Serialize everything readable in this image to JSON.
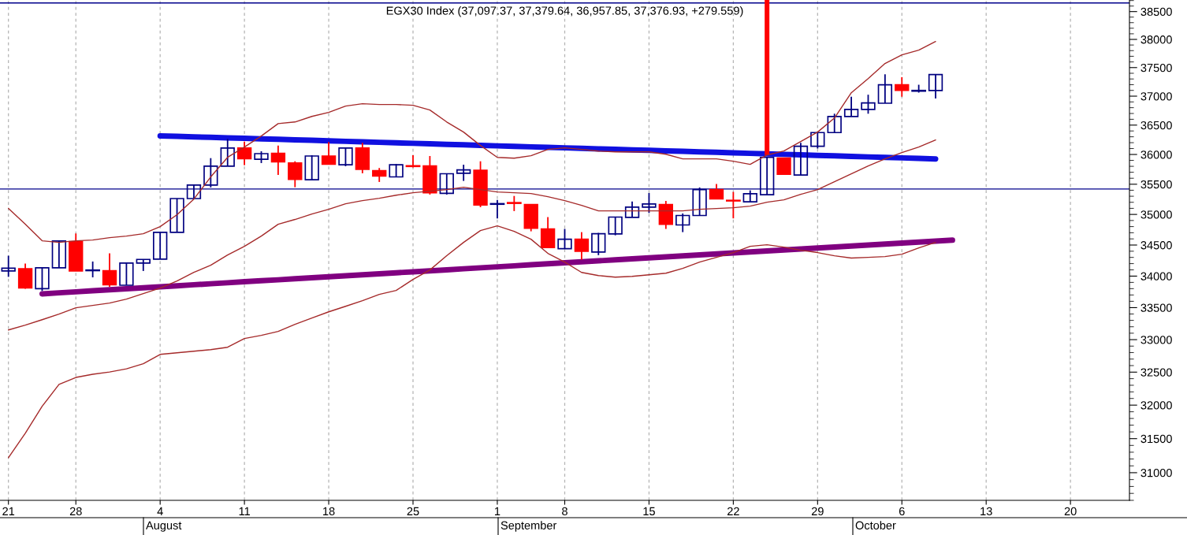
{
  "chart_data": {
    "type": "candlestick",
    "title": "EGX30 Index (37,097.37, 37,379.64, 36,957.85, 37,376.93, +279.559)",
    "categories": [
      "21",
      null,
      null,
      null,
      "28",
      null,
      null,
      null,
      null,
      "4",
      null,
      null,
      null,
      null,
      "11",
      null,
      null,
      null,
      null,
      "18",
      null,
      null,
      null,
      null,
      "25",
      null,
      null,
      null,
      null,
      "1",
      null,
      null,
      null,
      "8",
      null,
      null,
      null,
      null,
      "15",
      null,
      null,
      null,
      null,
      "22",
      null,
      null,
      null,
      null,
      "29",
      null,
      null,
      null,
      null,
      "6",
      null,
      null,
      null,
      null,
      "13",
      null,
      null,
      null,
      null,
      "20",
      null,
      null,
      null
    ],
    "series": [
      {
        "ohlc": [
          [
            34082,
            34327,
            33988,
            34127
          ],
          [
            34118,
            34200,
            33797,
            33813
          ],
          [
            33800,
            34140,
            33763,
            34132
          ],
          [
            34132,
            34565,
            34132,
            34565
          ],
          [
            34556,
            34688,
            34082,
            34082
          ],
          [
            34090,
            34234,
            33980,
            34095
          ],
          [
            34085,
            34365,
            33831,
            33863
          ],
          [
            33855,
            34209,
            33855,
            34209
          ],
          [
            34209,
            34268,
            34082,
            34268
          ],
          [
            34273,
            34706,
            34273,
            34706
          ],
          [
            34706,
            35262,
            34706,
            35262
          ],
          [
            35262,
            35486,
            35262,
            35486
          ],
          [
            35486,
            35938,
            35446,
            35802
          ],
          [
            35802,
            36264,
            35802,
            36108
          ],
          [
            36108,
            36219,
            35819,
            35928
          ],
          [
            35920,
            36054,
            35855,
            36014
          ],
          [
            36018,
            36152,
            35654,
            35875
          ],
          [
            35855,
            35885,
            35450,
            35582
          ],
          [
            35575,
            35987,
            35575,
            35974
          ],
          [
            35974,
            36210,
            35836,
            35836
          ],
          [
            35827,
            36108,
            35801,
            36108
          ],
          [
            36108,
            36197,
            35683,
            35749
          ],
          [
            35728,
            35772,
            35538,
            35636
          ],
          [
            35623,
            35840,
            35623,
            35827
          ],
          [
            35807,
            35987,
            35780,
            35800
          ],
          [
            35805,
            35974,
            35328,
            35358
          ],
          [
            35349,
            35675,
            35328,
            35675
          ],
          [
            35683,
            35827,
            35555,
            35740
          ],
          [
            35735,
            35885,
            35119,
            35154
          ],
          [
            35170,
            35240,
            34935,
            35175
          ],
          [
            35192,
            35305,
            35055,
            35185
          ],
          [
            35162,
            35162,
            34723,
            34775
          ],
          [
            34762,
            34956,
            34458,
            34458
          ],
          [
            34441,
            34762,
            34441,
            34594
          ],
          [
            34594,
            34710,
            34263,
            34398
          ],
          [
            34386,
            34697,
            34336,
            34684
          ],
          [
            34680,
            34956,
            34658,
            34956
          ],
          [
            34952,
            35214,
            34952,
            35120
          ],
          [
            35120,
            35354,
            35024,
            35172
          ],
          [
            35162,
            35223,
            34762,
            34839
          ],
          [
            34827,
            35016,
            34710,
            34982
          ],
          [
            34982,
            35446,
            34982,
            35411
          ],
          [
            35411,
            35503,
            35256,
            35256
          ],
          [
            35230,
            35372,
            34935,
            35225
          ],
          [
            35209,
            35398,
            35209,
            35341
          ],
          [
            35325,
            35951,
            35325,
            35951
          ],
          [
            35938,
            35938,
            35668,
            35668
          ],
          [
            35653,
            36197,
            35653,
            36139
          ],
          [
            36139,
            36372,
            36100,
            36372
          ],
          [
            36372,
            36696,
            36372,
            36647
          ],
          [
            36647,
            36990,
            36647,
            36769
          ],
          [
            36769,
            37025,
            36696,
            36883
          ],
          [
            36877,
            37382,
            36877,
            37199
          ],
          [
            37199,
            37332,
            36990,
            37102
          ],
          [
            37090,
            37199,
            37062,
            37097
          ],
          [
            37097.37,
            37379.64,
            36957.85,
            37376.93
          ],
          null,
          null,
          null,
          null,
          null,
          null,
          null,
          null,
          null,
          null,
          null
        ],
        "colors": [
          "#000080",
          "#ff0000",
          "#000080",
          "#000080",
          "#ff0000",
          "#000080",
          "#ff0000",
          "#000080",
          "#000080",
          "#000080",
          "#000080",
          "#000080",
          "#000080",
          "#000080",
          "#ff0000",
          "#000080",
          "#ff0000",
          "#ff0000",
          "#000080",
          "#ff0000",
          "#000080",
          "#ff0000",
          "#ff0000",
          "#000080",
          "#ff0000",
          "#ff0000",
          "#000080",
          "#000080",
          "#ff0000",
          "#000080",
          "#ff0000",
          "#ff0000",
          "#ff0000",
          "#000080",
          "#ff0000",
          "#000080",
          "#000080",
          "#000080",
          "#000080",
          "#ff0000",
          "#000080",
          "#000080",
          "#ff0000",
          "#ff0000",
          "#000080",
          "#000080",
          "#ff0000",
          "#000080",
          "#000080",
          "#000080",
          "#000080",
          "#000080",
          "#000080",
          "#ff0000",
          "#000080",
          "#000080",
          null,
          null,
          null,
          null,
          null,
          null,
          null,
          null,
          null,
          null,
          null
        ]
      },
      {
        "type": "line",
        "color": "#a52a2a",
        "values": [
          35098,
          34839,
          34569,
          34543,
          34569,
          34582,
          34620,
          34645,
          34684,
          34800,
          34995,
          35253,
          35622,
          35951,
          36125,
          36313,
          36526,
          36554,
          36649,
          36718,
          36828,
          36869,
          36855,
          36855,
          36841,
          36759,
          36554,
          36381,
          36152,
          35951,
          35938,
          35978,
          36085,
          36112,
          36085,
          36058,
          36044,
          36044,
          36044,
          36004,
          35925,
          35925,
          35925,
          35885,
          35833,
          35991,
          36058,
          36219,
          36381,
          36622,
          37059,
          37307,
          37572,
          37725,
          37809,
          37962,
          null,
          null,
          null,
          null,
          null,
          null,
          null,
          null,
          null,
          null,
          null
        ]
      },
      {
        "type": "line",
        "color": "#a52a2a",
        "values": [
          33151,
          33225,
          33311,
          33398,
          33497,
          33535,
          33572,
          33634,
          33722,
          33809,
          33922,
          34060,
          34174,
          34339,
          34479,
          34645,
          34839,
          34917,
          35007,
          35085,
          35176,
          35227,
          35266,
          35318,
          35358,
          35384,
          35410,
          35450,
          35410,
          35371,
          35358,
          35345,
          35292,
          35227,
          35150,
          35059,
          35059,
          35059,
          35059,
          35059,
          35059,
          35085,
          35098,
          35111,
          35137,
          35202,
          35240,
          35332,
          35410,
          35542,
          35674,
          35806,
          35925,
          36031,
          36125,
          36246,
          null,
          null,
          null,
          null,
          null,
          null,
          null,
          null,
          null,
          null,
          null
        ]
      },
      {
        "type": "line",
        "color": "#a52a2a",
        "values": [
          31220,
          31580,
          31982,
          32313,
          32419,
          32467,
          32502,
          32550,
          32628,
          32772,
          32796,
          32821,
          32845,
          32882,
          33017,
          33066,
          33127,
          33238,
          33336,
          33434,
          33521,
          33609,
          33709,
          33772,
          33947,
          34098,
          34327,
          34543,
          34736,
          34813,
          34723,
          34594,
          34365,
          34225,
          34059,
          34009,
          33984,
          33996,
          34021,
          34046,
          34123,
          34225,
          34301,
          34378,
          34479,
          34505,
          34467,
          34416,
          34378,
          34327,
          34289,
          34301,
          34314,
          34352,
          34454,
          34543,
          null,
          null,
          null,
          null,
          null,
          null,
          null,
          null,
          null,
          null,
          null
        ]
      },
      {
        "type": "line",
        "color": "#1010e0",
        "values": [
          null,
          null,
          null,
          null,
          null,
          null,
          null,
          null,
          null,
          36316,
          36308,
          36299,
          36291,
          36282,
          36274,
          36265,
          36257,
          36248,
          36240,
          36231,
          36223,
          36214,
          36206,
          36197,
          36189,
          36180,
          36172,
          36163,
          36155,
          36146,
          36138,
          36129,
          36121,
          36112,
          36104,
          36095,
          36087,
          36078,
          36070,
          36061,
          36053,
          36044,
          36036,
          36027,
          36019,
          36010,
          36002,
          35993,
          35985,
          35976,
          35968,
          35959,
          35951,
          35942,
          35934,
          35925,
          null,
          null,
          null,
          null,
          null,
          null,
          null,
          null,
          null,
          null,
          null
        ]
      },
      {
        "type": "line",
        "color": "#800080",
        "values": [
          null,
          null,
          33718,
          33734,
          33750,
          33766,
          33782,
          33798,
          33814,
          33830,
          33846,
          33862,
          33878,
          33894,
          33910,
          33926,
          33941,
          33957,
          33973,
          33989,
          34005,
          34021,
          34037,
          34053,
          34069,
          34085,
          34101,
          34117,
          34133,
          34149,
          34165,
          34181,
          34197,
          34213,
          34229,
          34245,
          34261,
          34277,
          34293,
          34309,
          34325,
          34340,
          34356,
          34372,
          34388,
          34404,
          34420,
          34436,
          34452,
          34468,
          34484,
          34500,
          34516,
          34532,
          34548,
          34564,
          34580,
          null,
          null,
          null,
          null,
          null,
          null,
          null,
          null,
          null,
          null
        ]
      },
      {
        "type": "bar",
        "color": "#ff0000",
        "values": [
          null,
          null,
          null,
          null,
          null,
          null,
          null,
          null,
          null,
          null,
          null,
          null,
          null,
          null,
          null,
          null,
          null,
          null,
          null,
          null,
          null,
          null,
          null,
          null,
          null,
          null,
          null,
          null,
          null,
          null,
          null,
          null,
          null,
          null,
          null,
          null,
          null,
          null,
          null,
          null,
          null,
          null,
          null,
          null,
          null,
          2720,
          null,
          null,
          null,
          null,
          null,
          null,
          null,
          null,
          null,
          null,
          null,
          null,
          null,
          null,
          null,
          null,
          null,
          null,
          null,
          null,
          null
        ],
        "base": [
          null,
          null,
          null,
          null,
          null,
          null,
          null,
          null,
          null,
          null,
          null,
          null,
          null,
          null,
          null,
          null,
          null,
          null,
          null,
          null,
          null,
          null,
          null,
          null,
          null,
          null,
          null,
          null,
          null,
          null,
          null,
          null,
          null,
          null,
          null,
          null,
          null,
          null,
          null,
          null,
          null,
          null,
          null,
          null,
          null,
          35990,
          null,
          null,
          null,
          null,
          null,
          null,
          null,
          null,
          null,
          null,
          null,
          null,
          null,
          null,
          null,
          null,
          null,
          null,
          null,
          null,
          null
        ]
      }
    ],
    "annotations": [
      "August",
      "September",
      "October"
    ],
    "ref_lines": [
      {
        "axis": "y",
        "value": 38657,
        "color": "#00008b"
      },
      {
        "axis": "y",
        "value": 35420,
        "color": "#00008b"
      }
    ],
    "log": true,
    "ylim": [
      30600,
      38710
    ],
    "yticks": [
      31000,
      31500,
      32000,
      32500,
      33000,
      33500,
      34000,
      34500,
      35000,
      35500,
      36000,
      36500,
      37000,
      37500,
      38000,
      38500
    ],
    "grid": "x"
  }
}
